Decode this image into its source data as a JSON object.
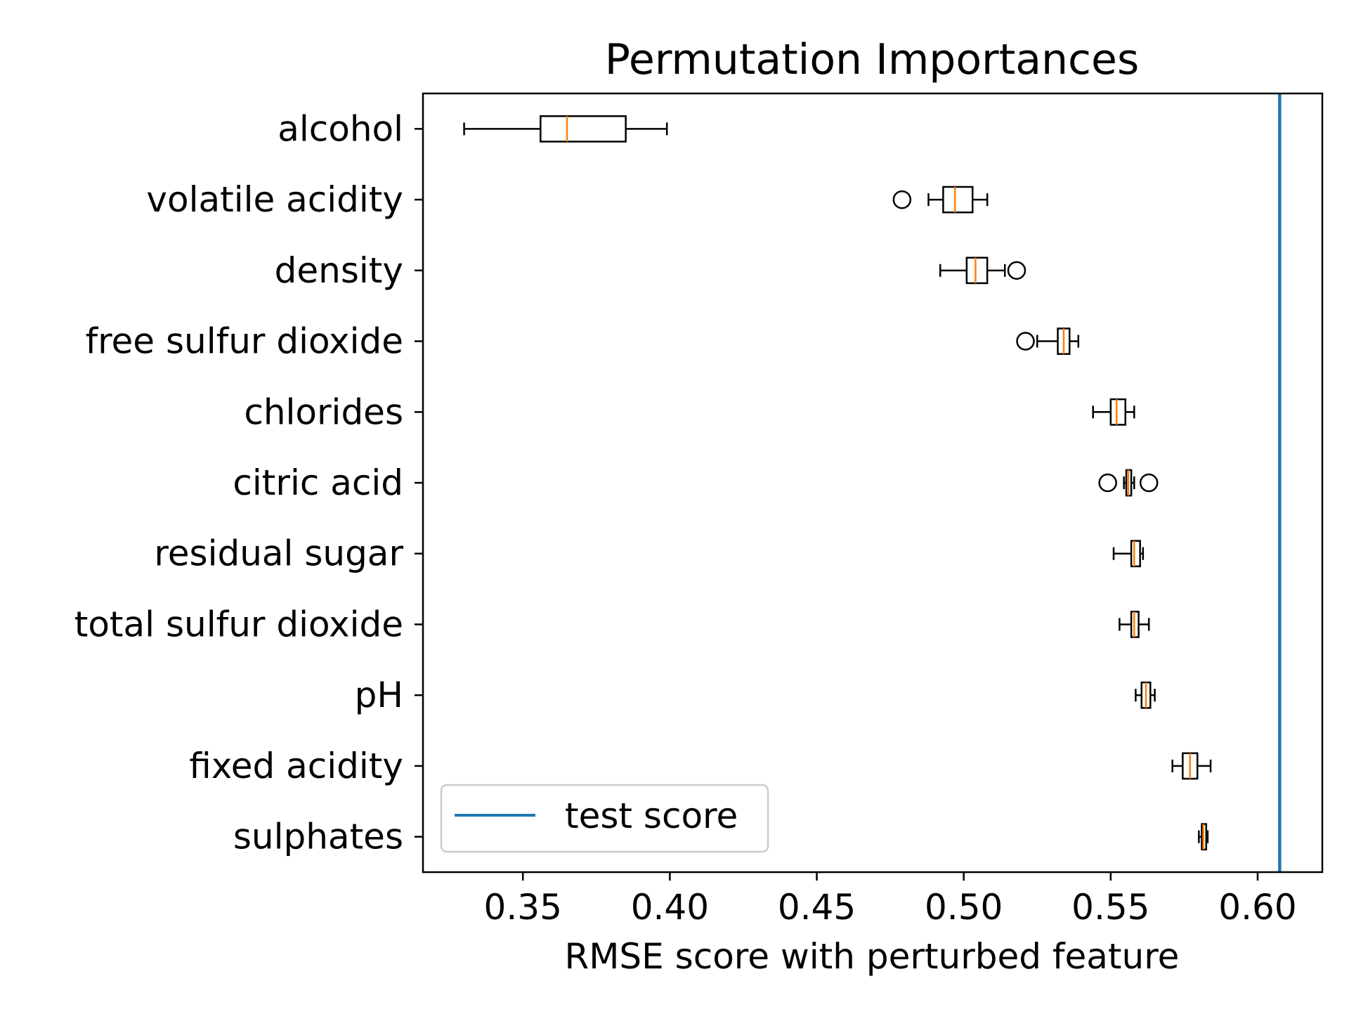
{
  "chart_data": {
    "type": "boxplot",
    "orientation": "horizontal",
    "title": "Permutation Importances",
    "xlabel": "RMSE score with perturbed feature",
    "ylabel": "",
    "xlim": [
      0.316,
      0.622
    ],
    "xticks": [
      0.35,
      0.4,
      0.45,
      0.5,
      0.55,
      0.6
    ],
    "xtick_labels": [
      "0.35",
      "0.40",
      "0.45",
      "0.50",
      "0.55",
      "0.60"
    ],
    "grid": false,
    "categories": [
      "alcohol",
      "volatile acidity",
      "density",
      "free sulfur dioxide",
      "chlorides",
      "citric acid",
      "residual sugar",
      "total sulfur dioxide",
      "pH",
      "fixed acidity",
      "sulphates"
    ],
    "boxes": [
      {
        "feature": "alcohol",
        "whisker_low": 0.33,
        "q1": 0.356,
        "median": 0.365,
        "q3": 0.385,
        "whisker_high": 0.399,
        "outliers": []
      },
      {
        "feature": "volatile acidity",
        "whisker_low": 0.488,
        "q1": 0.493,
        "median": 0.497,
        "q3": 0.503,
        "whisker_high": 0.508,
        "outliers": [
          0.479
        ]
      },
      {
        "feature": "density",
        "whisker_low": 0.492,
        "q1": 0.501,
        "median": 0.504,
        "q3": 0.508,
        "whisker_high": 0.514,
        "outliers": [
          0.518
        ]
      },
      {
        "feature": "free sulfur dioxide",
        "whisker_low": 0.525,
        "q1": 0.532,
        "median": 0.534,
        "q3": 0.536,
        "whisker_high": 0.539,
        "outliers": [
          0.521
        ]
      },
      {
        "feature": "chlorides",
        "whisker_low": 0.544,
        "q1": 0.55,
        "median": 0.552,
        "q3": 0.555,
        "whisker_high": 0.558,
        "outliers": []
      },
      {
        "feature": "citric acid",
        "whisker_low": 0.5545,
        "q1": 0.5553,
        "median": 0.556,
        "q3": 0.557,
        "whisker_high": 0.558,
        "outliers": [
          0.549,
          0.563
        ]
      },
      {
        "feature": "residual sugar",
        "whisker_low": 0.551,
        "q1": 0.557,
        "median": 0.558,
        "q3": 0.56,
        "whisker_high": 0.561,
        "outliers": []
      },
      {
        "feature": "total sulfur dioxide",
        "whisker_low": 0.553,
        "q1": 0.557,
        "median": 0.558,
        "q3": 0.5595,
        "whisker_high": 0.563,
        "outliers": []
      },
      {
        "feature": "pH",
        "whisker_low": 0.5585,
        "q1": 0.5605,
        "median": 0.562,
        "q3": 0.5635,
        "whisker_high": 0.565,
        "outliers": []
      },
      {
        "feature": "fixed acidity",
        "whisker_low": 0.571,
        "q1": 0.5745,
        "median": 0.577,
        "q3": 0.5795,
        "whisker_high": 0.584,
        "outliers": []
      },
      {
        "feature": "sulphates",
        "whisker_low": 0.58,
        "q1": 0.581,
        "median": 0.5815,
        "q3": 0.5825,
        "whisker_high": 0.583,
        "outliers": []
      }
    ],
    "reference_line": {
      "name": "test score",
      "value": 0.6075,
      "color": "#1f77b4"
    },
    "legend": {
      "entries": [
        "test score"
      ],
      "position": "lower-left"
    },
    "colors": {
      "box": "#000000",
      "median": "#ff7f0e",
      "reference": "#1f77b4"
    }
  }
}
